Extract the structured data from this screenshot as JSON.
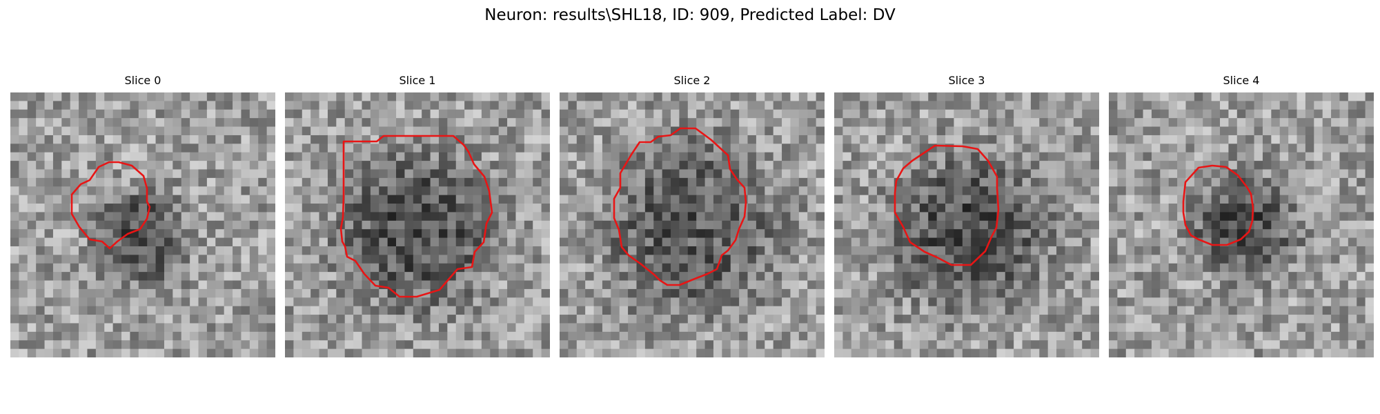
{
  "figure": {
    "title": "Neuron: results\\SHL18, ID: 909, Predicted Label: DV"
  },
  "panels": [
    {
      "title": "Slice 0"
    },
    {
      "title": "Slice 1"
    },
    {
      "title": "Slice 2"
    },
    {
      "title": "Slice 3"
    },
    {
      "title": "Slice 4"
    }
  ],
  "contour_color": "#e81515",
  "colormap": "gray"
}
